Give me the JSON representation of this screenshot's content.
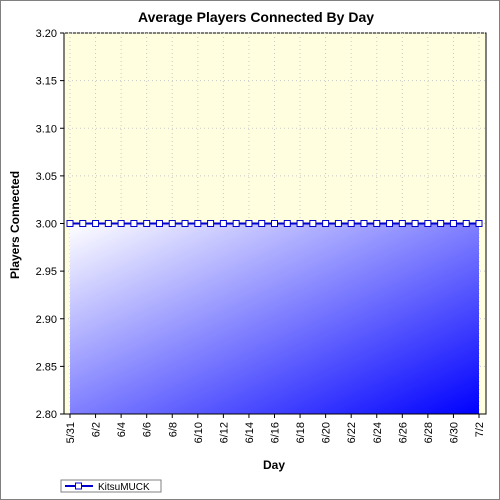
{
  "chart_data": {
    "type": "area",
    "title": "Average Players Connected By Day",
    "xlabel": "Day",
    "ylabel": "Players Connected",
    "ylim": [
      2.8,
      3.2
    ],
    "yticks": [
      "2.80",
      "2.85",
      "2.90",
      "2.95",
      "3.00",
      "3.05",
      "3.10",
      "3.15",
      "3.20"
    ],
    "x": [
      "5/31",
      "6/1",
      "6/2",
      "6/3",
      "6/4",
      "6/5",
      "6/6",
      "6/7",
      "6/8",
      "6/9",
      "6/10",
      "6/11",
      "6/12",
      "6/13",
      "6/14",
      "6/15",
      "6/16",
      "6/17",
      "6/18",
      "6/19",
      "6/20",
      "6/21",
      "6/22",
      "6/23",
      "6/24",
      "6/25",
      "6/26",
      "6/27",
      "6/28",
      "6/29",
      "6/30",
      "7/1",
      "7/2"
    ],
    "xticks": [
      "5/31",
      "6/2",
      "6/4",
      "6/6",
      "6/8",
      "6/10",
      "6/12",
      "6/14",
      "6/16",
      "6/18",
      "6/20",
      "6/22",
      "6/24",
      "6/26",
      "6/28",
      "6/30",
      "7/2"
    ],
    "series": [
      {
        "name": "KitsuMUCK",
        "values": [
          3,
          3,
          3,
          3,
          3,
          3,
          3,
          3,
          3,
          3,
          3,
          3,
          3,
          3,
          3,
          3,
          3,
          3,
          3,
          3,
          3,
          3,
          3,
          3,
          3,
          3,
          3,
          3,
          3,
          3,
          3,
          3,
          3
        ]
      }
    ],
    "grid": true,
    "legend": "bottom-left",
    "colors": {
      "plot_background": "#ffffe0",
      "area_light": "#ffffff",
      "area_dark": "#0000ff",
      "line": "#0000cc"
    }
  }
}
